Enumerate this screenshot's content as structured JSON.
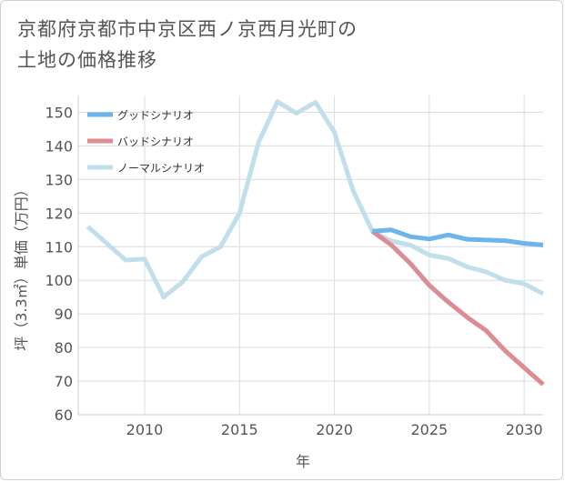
{
  "title_lines": [
    "京都府京都市中京区西ノ京西月光町の",
    "土地の価格推移"
  ],
  "chart_data": {
    "type": "line",
    "xlabel": "年",
    "ylabel": "坪（3.3㎡）単価（万円）",
    "xlim": [
      2006.5,
      2031
    ],
    "ylim": [
      60,
      155
    ],
    "xticks": [
      2010,
      2015,
      2020,
      2025,
      2030
    ],
    "yticks": [
      60,
      70,
      80,
      90,
      100,
      110,
      120,
      130,
      140,
      150
    ],
    "grid": true,
    "legend_position": "top-left",
    "series": [
      {
        "name": "グッドシナリオ",
        "color": "#6cb4ea",
        "x": [
          2022,
          2023,
          2024,
          2025,
          2026,
          2027,
          2028,
          2029,
          2030,
          2031
        ],
        "y": [
          114.6,
          115.0,
          113.0,
          112.3,
          113.5,
          112.2,
          112.0,
          111.8,
          111.0,
          110.5
        ]
      },
      {
        "name": "バッドシナリオ",
        "color": "#dd8c93",
        "x": [
          2022,
          2023,
          2024,
          2025,
          2026,
          2027,
          2028,
          2029,
          2030,
          2031
        ],
        "y": [
          114.6,
          110.5,
          105.0,
          98.5,
          93.5,
          89.0,
          85.0,
          79.0,
          74.0,
          69.0
        ]
      },
      {
        "name": "ノーマルシナリオ",
        "color": "#c1deeb",
        "x": [
          2007,
          2008,
          2009,
          2010,
          2011,
          2012,
          2013,
          2014,
          2015,
          2016,
          2017,
          2018,
          2019,
          2020,
          2021,
          2022,
          2023,
          2024,
          2025,
          2026,
          2027,
          2028,
          2029,
          2030,
          2031
        ],
        "y": [
          116.0,
          111.0,
          106.0,
          106.3,
          95.0,
          99.5,
          107.0,
          110.0,
          120.0,
          141.0,
          153.2,
          149.7,
          153.0,
          144.0,
          126.5,
          114.6,
          111.7,
          110.5,
          107.5,
          106.5,
          104.0,
          102.5,
          100.0,
          99.0,
          96.0
        ]
      }
    ]
  }
}
